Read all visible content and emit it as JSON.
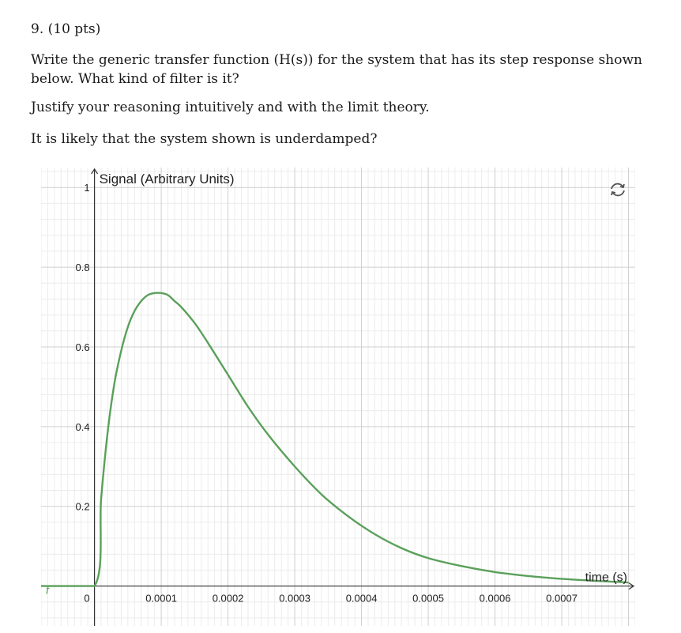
{
  "question": {
    "number": "9. (10 pts)",
    "paragraph1": "Write the generic transfer function (H(s)) for the system that has its step response shown below. What kind of filter is it?",
    "paragraph2": "Justify your reasoning intuitively and with the limit theory.",
    "paragraph3": "It is likely that the system shown is underdamped?"
  },
  "chart_data": {
    "type": "line",
    "title": "",
    "xlabel": "time (s)",
    "ylabel": "Signal (Arbitrary Units)",
    "xlim": [
      -8e-05,
      0.00081
    ],
    "ylim": [
      -0.1,
      1.05
    ],
    "x_ticks": [
      "0",
      "0.0001",
      "0.0002",
      "0.0003",
      "0.0004",
      "0.0005",
      "0.0006",
      "0.0007"
    ],
    "y_ticks": [
      "0.2",
      "0.4",
      "0.6",
      "0.8",
      "1"
    ],
    "grid": true,
    "series": [
      {
        "color": "#5aa05a",
        "x": [
          -8e-05,
          0,
          1e-05,
          2e-05,
          3e-05,
          4e-05,
          5e-05,
          6e-05,
          7e-05,
          8e-05,
          9e-05,
          0.0001,
          0.00011,
          0.00012,
          0.00013,
          0.00015,
          0.00017,
          0.0002,
          0.00023,
          0.00026,
          0.0003,
          0.00034,
          0.00038,
          0.00042,
          0.00046,
          0.0005,
          0.00055,
          0.0006,
          0.00065,
          0.0007,
          0.00075,
          0.0008
        ],
        "y": [
          0,
          0,
          0.22,
          0.39,
          0.51,
          0.59,
          0.65,
          0.69,
          0.715,
          0.73,
          0.735,
          0.735,
          0.73,
          0.715,
          0.7,
          0.66,
          0.61,
          0.53,
          0.45,
          0.38,
          0.3,
          0.23,
          0.175,
          0.13,
          0.095,
          0.07,
          0.05,
          0.035,
          0.025,
          0.018,
          0.013,
          0.009
        ]
      }
    ],
    "icons": [
      "reset-graph-icon",
      "function-icon"
    ]
  }
}
